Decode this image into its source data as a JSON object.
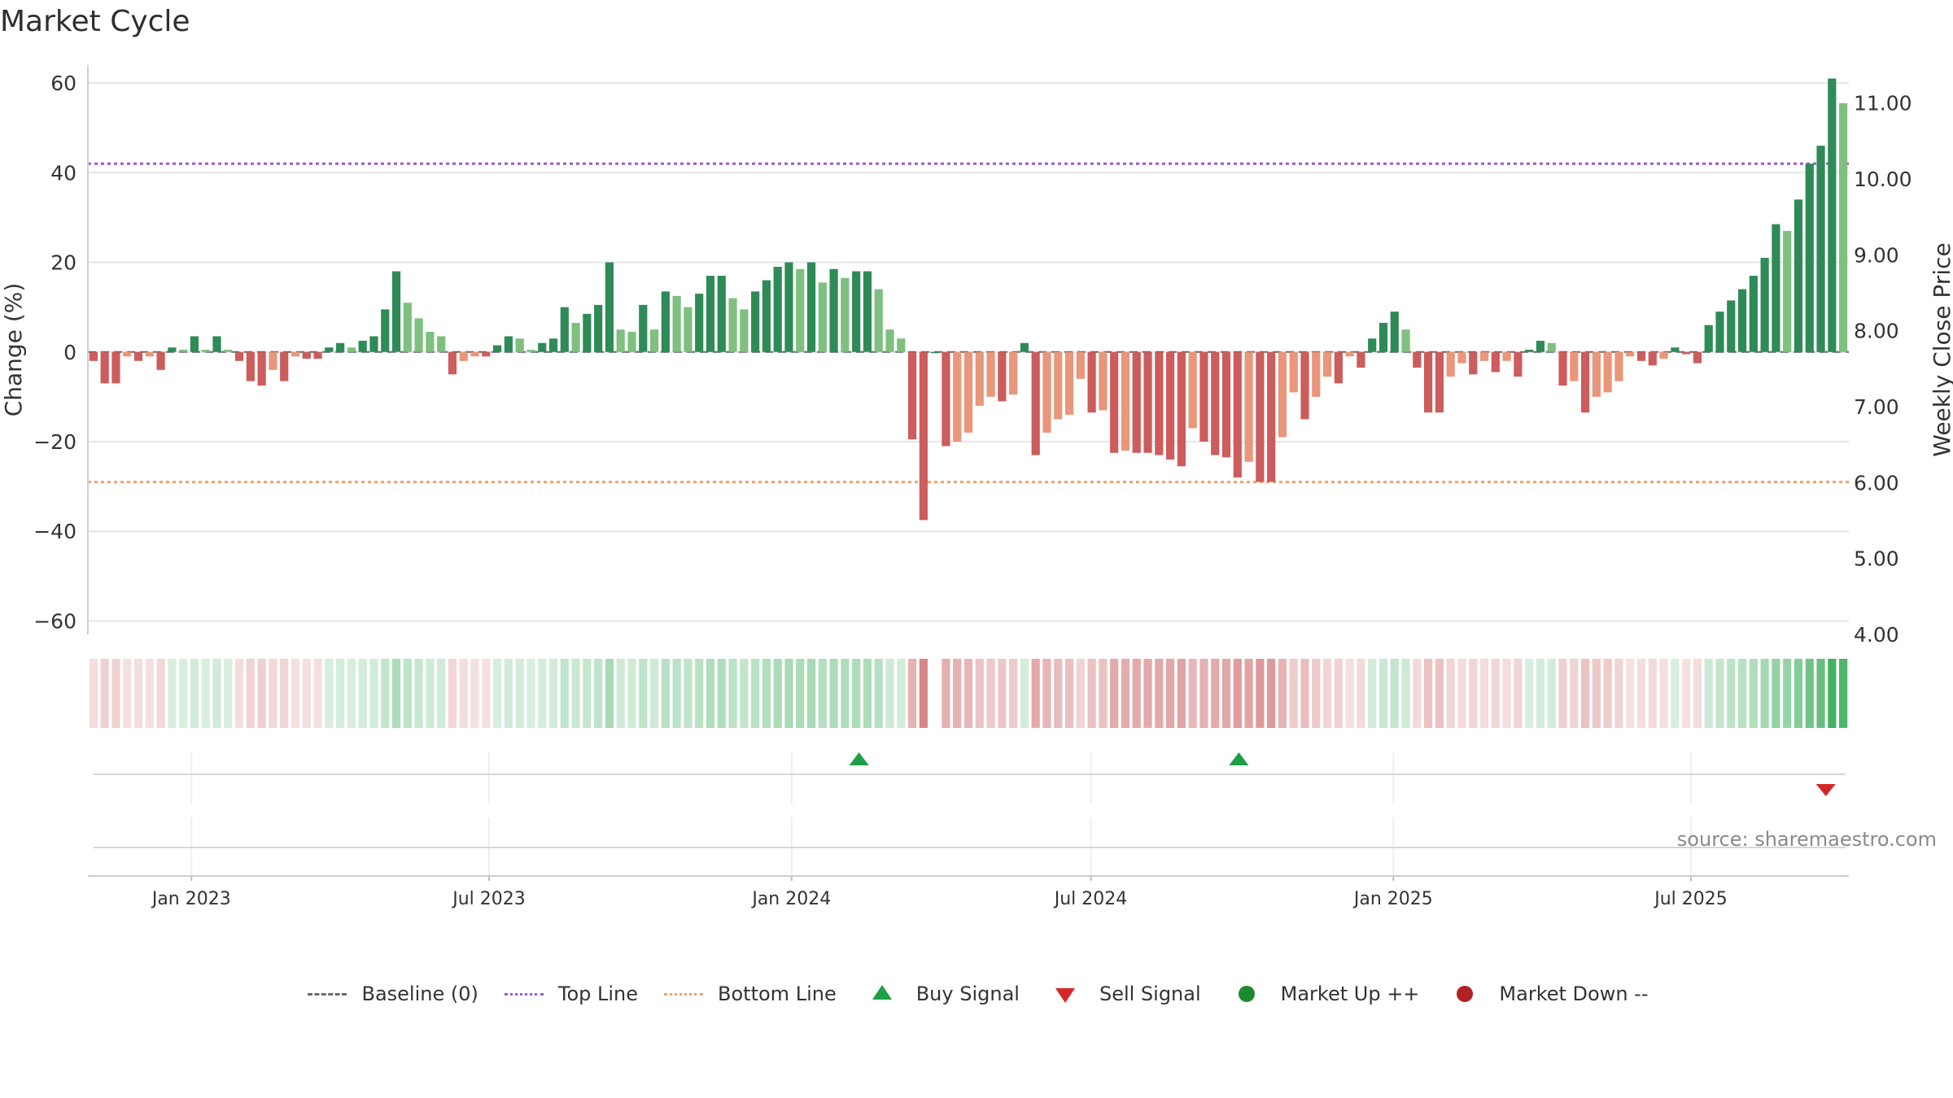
{
  "title": "Market Cycle",
  "source": "source: sharemaestro.com",
  "colors": {
    "strong_up": "#2e8b57",
    "up": "#7fbf7f",
    "strong_down": "#cd5c5c",
    "down": "#e9967a",
    "top_line": "#9b5bd0",
    "bottom_line": "#f0a070",
    "baseline": "#6b6b6b",
    "buy": "#1e9e45",
    "sell": "#d62728",
    "market_up": "#1e8a2e",
    "market_down": "#b22222"
  },
  "legend": [
    {
      "label": "Baseline (0)",
      "icon": "dashed-line"
    },
    {
      "label": "Top Line",
      "icon": "dotted-line-purple"
    },
    {
      "label": "Bottom Line",
      "icon": "dotted-line-orange"
    },
    {
      "label": "Buy Signal",
      "icon": "triangle-up"
    },
    {
      "label": "Sell Signal",
      "icon": "triangle-down"
    },
    {
      "label": "Market Up ++",
      "icon": "circle-green"
    },
    {
      "label": "Market Down --",
      "icon": "circle-red"
    }
  ],
  "chart_data": {
    "type": "bar",
    "ylabel": "Change (%)",
    "y2label": "Weekly Close Price",
    "ylim": [
      -63,
      64
    ],
    "yticks": [
      60,
      40,
      20,
      0,
      -20,
      -40,
      -60
    ],
    "ytick_labels": [
      "60",
      "40",
      "20",
      "0",
      "−20",
      "−40",
      "−60"
    ],
    "y2lim": [
      4.0,
      11.5
    ],
    "y2ticks": [
      11.0,
      10.0,
      9.0,
      8.0,
      7.0,
      6.0,
      5.0,
      4.0
    ],
    "y2tick_labels": [
      "11.00",
      "10.00",
      "9.00",
      "8.00",
      "7.00",
      "6.00",
      "5.00",
      "4.00"
    ],
    "x_start": "2022-10-30",
    "x_end": "2025-10-05",
    "x_tick_dates": [
      "2023-01-01",
      "2023-07-01",
      "2024-01-01",
      "2024-07-01",
      "2025-01-01",
      "2025-07-01"
    ],
    "x_tick_labels": [
      "Jan 2023",
      "Jul 2023",
      "Jan 2024",
      "Jul 2024",
      "Jan 2025",
      "Jul 2025"
    ],
    "top_line": 42,
    "bottom_line": -29,
    "baseline": 0,
    "grid": true,
    "legend_position": "bottom",
    "values": [
      -2,
      -7,
      -7,
      -1,
      -2,
      -1,
      -4,
      1,
      0.5,
      3.5,
      0.5,
      3.5,
      0.5,
      -2,
      -6.5,
      -7.5,
      -4,
      -6.5,
      -1,
      -1.5,
      -1.5,
      1,
      2,
      1,
      2.5,
      3.5,
      9.5,
      18,
      11,
      7.5,
      4.5,
      3.5,
      -5,
      -2,
      -1,
      -1,
      1.5,
      3.5,
      3,
      0.5,
      2,
      3,
      10,
      6.5,
      8.5,
      10.5,
      20,
      5,
      4.5,
      10.5,
      5,
      13.5,
      12.5,
      10,
      13,
      17,
      17,
      12,
      9.5,
      13.5,
      16,
      19,
      20,
      18.5,
      20,
      15.5,
      18.5,
      16.5,
      18,
      18,
      14,
      5,
      3,
      -19.5,
      -37.5,
      0,
      -21,
      -20,
      -18,
      -12,
      -10,
      -11,
      -9.5,
      2,
      -23,
      -18,
      -15,
      -14,
      -6,
      -13.5,
      -13,
      -22.5,
      -22,
      -22.5,
      -22.5,
      -23,
      -24,
      -25.5,
      -17,
      -20,
      -23,
      -23.5,
      -28,
      -24.5,
      -29,
      -29,
      -19,
      -9,
      -15,
      -10,
      -5.5,
      -7,
      -1,
      -3.5,
      3,
      6.5,
      9,
      5,
      -3.5,
      -13.5,
      -13.5,
      -5.5,
      -2.5,
      -5,
      -2,
      -4.5,
      -2,
      -5.5,
      0.5,
      2.5,
      2,
      -7.5,
      -6.5,
      -13.5,
      -10,
      -9,
      -6.5,
      -1,
      -2,
      -3,
      -1.5,
      1,
      -0.5,
      -2.5,
      6,
      9,
      11.5,
      14,
      17,
      21,
      28.5,
      27,
      34,
      42,
      46,
      61,
      55.5
    ]
  },
  "signals": {
    "buy_dates": [
      "2024-02-11",
      "2024-09-29"
    ],
    "sell_dates": [
      "2025-09-21"
    ]
  }
}
